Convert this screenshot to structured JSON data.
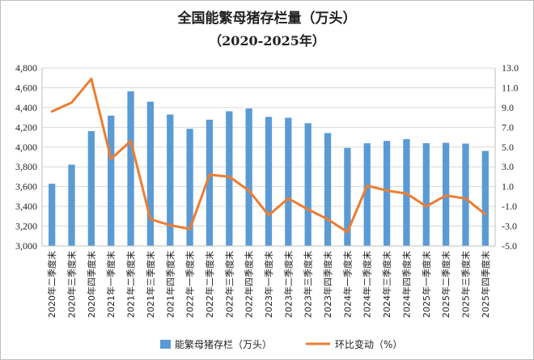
{
  "chart_data": {
    "type": "bar",
    "title": "全国能繁母猪存栏量（万头）",
    "subtitle": "（2020-2025年）",
    "categories": [
      "2020年二季度末",
      "2020年三季度末",
      "2020年四季度末",
      "2021年一季度末",
      "2021年二季度末",
      "2021年三季度末",
      "2021年四季度末",
      "2022年一季度末",
      "2022年二季度末",
      "2022年三季度末",
      "2022年四季度末",
      "2023年一季度末",
      "2023年二季度末",
      "2023年三季度末",
      "2023年四季度末",
      "2024年一季度末",
      "2024年二季度末",
      "2024年三季度末",
      "2024年四季度末",
      "2025年一季度末",
      "2025年二季度末",
      "2025年三季度末",
      "2025年四季度末"
    ],
    "series": [
      {
        "name": "能繁母猪存栏（万头）",
        "type": "bar",
        "axis": "left",
        "color": "#5b9bd5",
        "values": [
          3629,
          3822,
          4161,
          4318,
          4564,
          4459,
          4329,
          4185,
          4277,
          4362,
          4390,
          4305,
          4296,
          4241,
          4142,
          3992,
          4038,
          4062,
          4080,
          4039,
          4043,
          4035,
          3961
        ]
      },
      {
        "name": "环比变动（%）",
        "type": "line",
        "axis": "right",
        "color": "#ed7d31",
        "values": [
          8.6,
          9.5,
          11.9,
          3.8,
          5.6,
          -2.3,
          -2.9,
          -3.3,
          2.2,
          2.0,
          0.6,
          -1.9,
          -0.2,
          -1.3,
          -2.3,
          -3.6,
          1.1,
          0.6,
          0.3,
          -1.0,
          0.1,
          -0.2,
          -1.8
        ]
      }
    ],
    "y_left": {
      "min": 3000,
      "max": 4800,
      "step": 200,
      "ticks": [
        "3,000",
        "3,200",
        "3,400",
        "3,600",
        "3,800",
        "4,000",
        "4,200",
        "4,400",
        "4,600",
        "4,800"
      ]
    },
    "y_right": {
      "min": -5,
      "max": 13,
      "step": 2,
      "ticks": [
        "-5.0",
        "-3.0",
        "-1.0",
        "1.0",
        "3.0",
        "5.0",
        "7.0",
        "9.0",
        "11.0",
        "13.0"
      ]
    },
    "grid": true,
    "legend_position": "bottom"
  }
}
